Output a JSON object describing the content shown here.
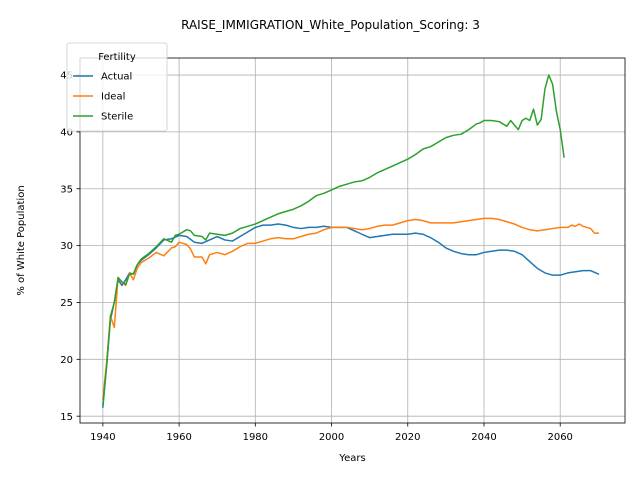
{
  "chart_data": {
    "type": "line",
    "title": "RAISE_IMMIGRATION_White_Population_Scoring: 3",
    "xlabel": "Years",
    "ylabel": "% of White Population",
    "xlim": [
      1934,
      2077
    ],
    "ylim": [
      14.4,
      46.5
    ],
    "xticks": [
      1940,
      1960,
      1980,
      2000,
      2020,
      2040,
      2060
    ],
    "yticks": [
      15,
      20,
      25,
      30,
      35,
      40,
      45
    ],
    "grid": true,
    "legend": {
      "title": "Fertility",
      "placement": "top-left"
    },
    "series": [
      {
        "name": "Actual",
        "color": "#1f77b4",
        "x": [
          1940,
          1941,
          1942,
          1943,
          1944,
          1945,
          1946,
          1947,
          1948,
          1949,
          1950,
          1952,
          1954,
          1956,
          1958,
          1960,
          1962,
          1964,
          1966,
          1968,
          1970,
          1972,
          1974,
          1976,
          1978,
          1980,
          1982,
          1984,
          1986,
          1988,
          1990,
          1992,
          1994,
          1996,
          1998,
          2000,
          2002,
          2004,
          2006,
          2008,
          2010,
          2012,
          2014,
          2016,
          2018,
          2020,
          2022,
          2024,
          2026,
          2028,
          2030,
          2032,
          2034,
          2036,
          2038,
          2040,
          2042,
          2044,
          2046,
          2048,
          2050,
          2052,
          2054,
          2056,
          2058,
          2060,
          2062,
          2064,
          2066,
          2068,
          2070
        ],
        "y": [
          15.8,
          19.5,
          23.5,
          25.0,
          27.0,
          26.5,
          27.0,
          27.6,
          27.5,
          28.3,
          28.7,
          29.2,
          29.8,
          30.5,
          30.6,
          30.9,
          30.8,
          30.3,
          30.2,
          30.5,
          30.8,
          30.5,
          30.4,
          30.8,
          31.2,
          31.6,
          31.8,
          31.8,
          31.9,
          31.8,
          31.6,
          31.5,
          31.6,
          31.6,
          31.7,
          31.6,
          31.6,
          31.6,
          31.3,
          31.0,
          30.7,
          30.8,
          30.9,
          31.0,
          31.0,
          31.0,
          31.1,
          31.0,
          30.7,
          30.3,
          29.8,
          29.5,
          29.3,
          29.2,
          29.2,
          29.4,
          29.5,
          29.6,
          29.6,
          29.5,
          29.2,
          28.6,
          28.0,
          27.6,
          27.4,
          27.4,
          27.6,
          27.7,
          27.8,
          27.8,
          27.5
        ]
      },
      {
        "name": "Ideal",
        "color": "#ff7f0e",
        "x": [
          1940,
          1941,
          1942,
          1943,
          1944,
          1945,
          1946,
          1947,
          1948,
          1949,
          1950,
          1952,
          1954,
          1956,
          1958,
          1959,
          1960,
          1962,
          1963,
          1964,
          1966,
          1967,
          1968,
          1970,
          1972,
          1974,
          1976,
          1978,
          1980,
          1982,
          1984,
          1986,
          1988,
          1990,
          1992,
          1994,
          1996,
          1998,
          2000,
          2002,
          2004,
          2006,
          2008,
          2010,
          2012,
          2014,
          2016,
          2018,
          2020,
          2022,
          2024,
          2026,
          2028,
          2030,
          2032,
          2034,
          2036,
          2038,
          2040,
          2042,
          2044,
          2046,
          2048,
          2050,
          2052,
          2054,
          2056,
          2058,
          2060,
          2062,
          2063,
          2064,
          2065,
          2066,
          2067,
          2068,
          2069,
          2070
        ],
        "y": [
          16.5,
          19.8,
          23.8,
          22.8,
          27.2,
          26.8,
          26.5,
          27.6,
          27.0,
          28.0,
          28.5,
          28.9,
          29.4,
          29.1,
          29.8,
          29.9,
          30.3,
          30.1,
          29.7,
          29.0,
          29.0,
          28.4,
          29.2,
          29.4,
          29.2,
          29.5,
          29.9,
          30.2,
          30.2,
          30.4,
          30.6,
          30.7,
          30.6,
          30.6,
          30.8,
          31.0,
          31.1,
          31.4,
          31.6,
          31.6,
          31.6,
          31.5,
          31.4,
          31.5,
          31.7,
          31.8,
          31.8,
          32.0,
          32.2,
          32.3,
          32.2,
          32.0,
          32.0,
          32.0,
          32.0,
          32.1,
          32.2,
          32.3,
          32.4,
          32.4,
          32.3,
          32.1,
          31.9,
          31.6,
          31.4,
          31.3,
          31.4,
          31.5,
          31.6,
          31.6,
          31.8,
          31.7,
          31.9,
          31.7,
          31.6,
          31.5,
          31.1,
          31.1
        ]
      },
      {
        "name": "Sterile",
        "color": "#2ca02c",
        "x": [
          1940,
          1941,
          1942,
          1943,
          1944,
          1945,
          1946,
          1947,
          1948,
          1949,
          1950,
          1952,
          1954,
          1956,
          1958,
          1959,
          1960,
          1962,
          1963,
          1964,
          1966,
          1967,
          1968,
          1970,
          1972,
          1974,
          1976,
          1978,
          1980,
          1982,
          1984,
          1986,
          1988,
          1990,
          1992,
          1994,
          1996,
          1998,
          2000,
          2002,
          2004,
          2006,
          2008,
          2010,
          2012,
          2014,
          2016,
          2018,
          2020,
          2022,
          2024,
          2026,
          2028,
          2030,
          2032,
          2034,
          2036,
          2038,
          2039,
          2040,
          2042,
          2044,
          2046,
          2047,
          2048,
          2049,
          2050,
          2051,
          2052,
          2053,
          2054,
          2055,
          2056,
          2057,
          2058,
          2059,
          2060,
          2061
        ],
        "y": [
          16.0,
          19.5,
          23.8,
          25.0,
          27.2,
          26.8,
          26.6,
          27.5,
          27.5,
          28.3,
          28.8,
          29.3,
          29.9,
          30.6,
          30.3,
          30.9,
          31.0,
          31.4,
          31.3,
          30.9,
          30.8,
          30.5,
          31.1,
          31.0,
          30.9,
          31.1,
          31.5,
          31.7,
          31.9,
          32.2,
          32.5,
          32.8,
          33.0,
          33.2,
          33.5,
          33.9,
          34.4,
          34.6,
          34.9,
          35.2,
          35.4,
          35.6,
          35.7,
          36.0,
          36.4,
          36.7,
          37.0,
          37.3,
          37.6,
          38.0,
          38.5,
          38.7,
          39.1,
          39.5,
          39.7,
          39.8,
          40.2,
          40.7,
          40.8,
          41.0,
          41.0,
          40.9,
          40.5,
          41.0,
          40.6,
          40.2,
          41.0,
          41.2,
          41.0,
          42.0,
          40.6,
          41.1,
          43.8,
          45.0,
          44.2,
          41.8,
          40.2,
          37.8
        ]
      }
    ]
  }
}
